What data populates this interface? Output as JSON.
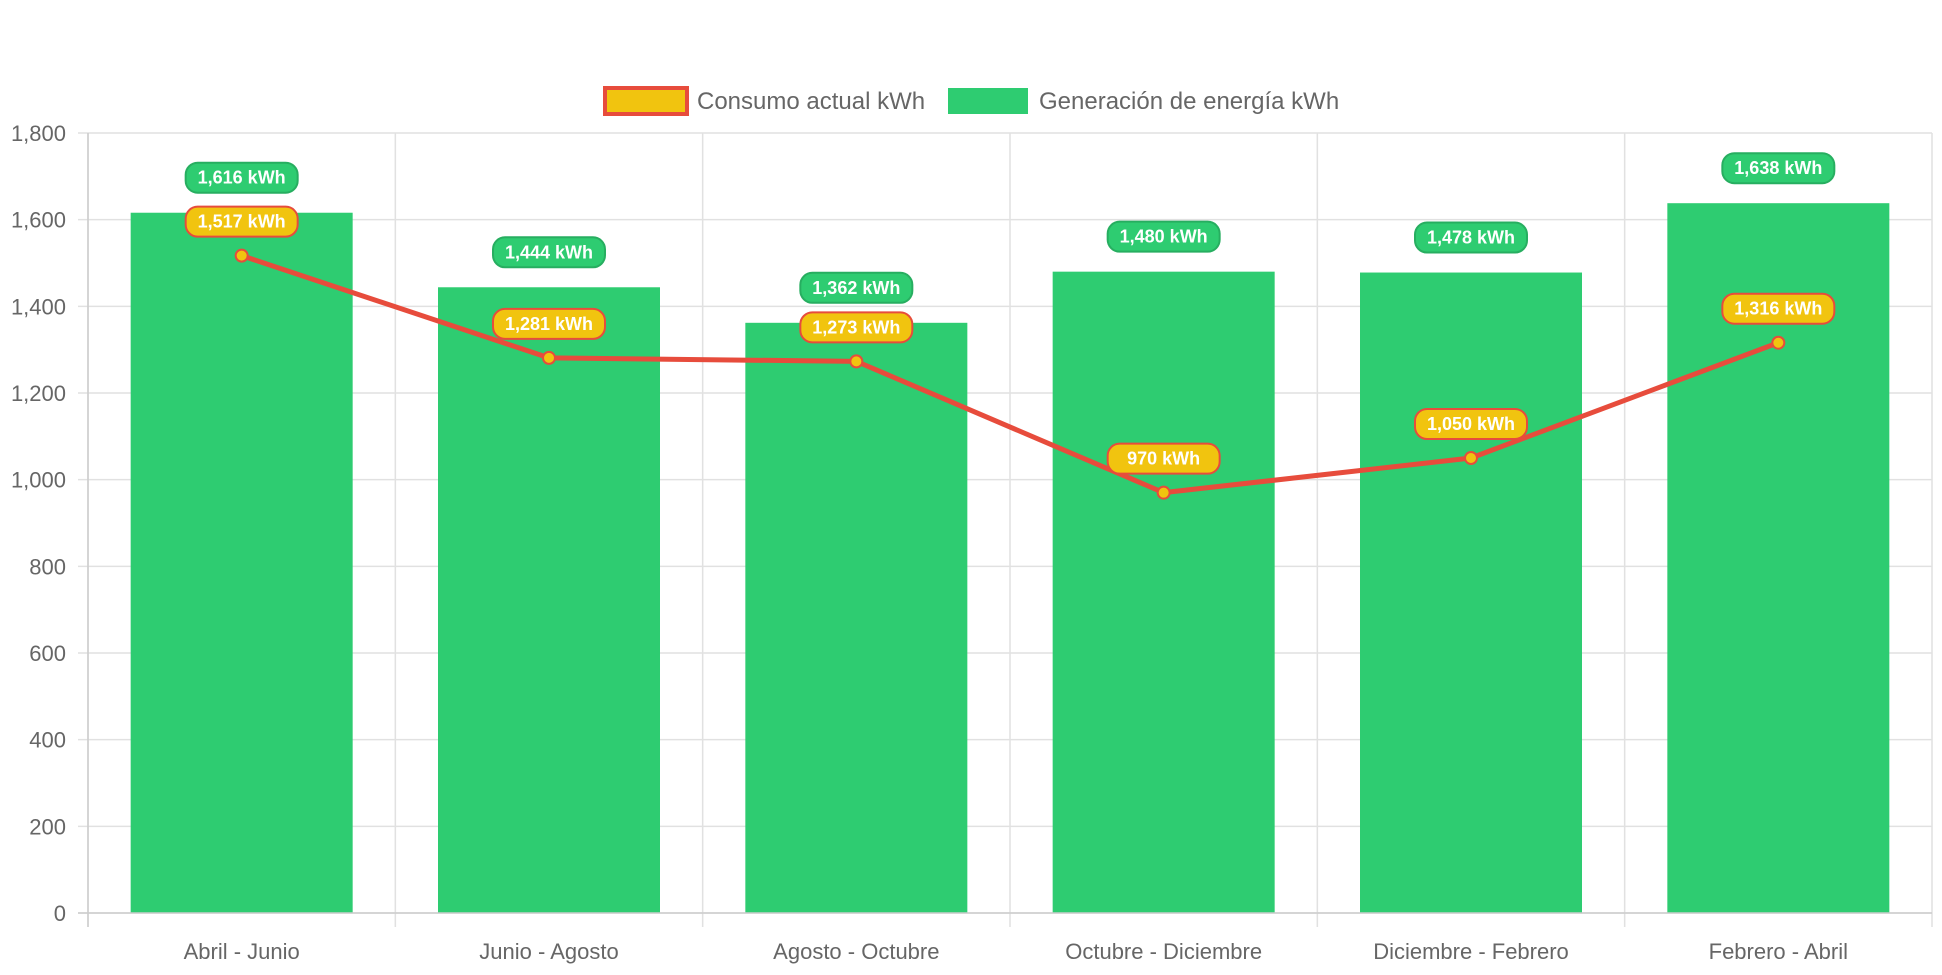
{
  "chart_data": {
    "type": "bar",
    "categories": [
      "Abril - Junio",
      "Junio - Agosto",
      "Agosto - Octubre",
      "Octubre - Diciembre",
      "Diciembre - Febrero",
      "Febrero - Abril"
    ],
    "series": [
      {
        "name": "Consumo actual kWh",
        "type": "line",
        "values": [
          1517,
          1281,
          1273,
          970,
          1050,
          1316
        ],
        "labels": [
          "1,517 kWh",
          "1,281 kWh",
          "1,273 kWh",
          "970 kWh",
          "1,050 kWh",
          "1,316 kWh"
        ],
        "line_color": "#e74c3c",
        "fill_color": "#f1c40f"
      },
      {
        "name": "Generación de energía kWh",
        "type": "bar",
        "values": [
          1616,
          1444,
          1362,
          1480,
          1478,
          1638
        ],
        "labels": [
          "1,616 kWh",
          "1,444 kWh",
          "1,362 kWh",
          "1,480 kWh",
          "1,478 kWh",
          "1,638 kWh"
        ],
        "color": "#2ecc71",
        "border_color": "#27ae60"
      }
    ],
    "ylim": [
      0,
      1800
    ],
    "yticks": [
      "0",
      "200",
      "400",
      "600",
      "800",
      "1,000",
      "1,200",
      "1,400",
      "1,600",
      "1,800"
    ],
    "grid": true,
    "legend": "top-center"
  }
}
